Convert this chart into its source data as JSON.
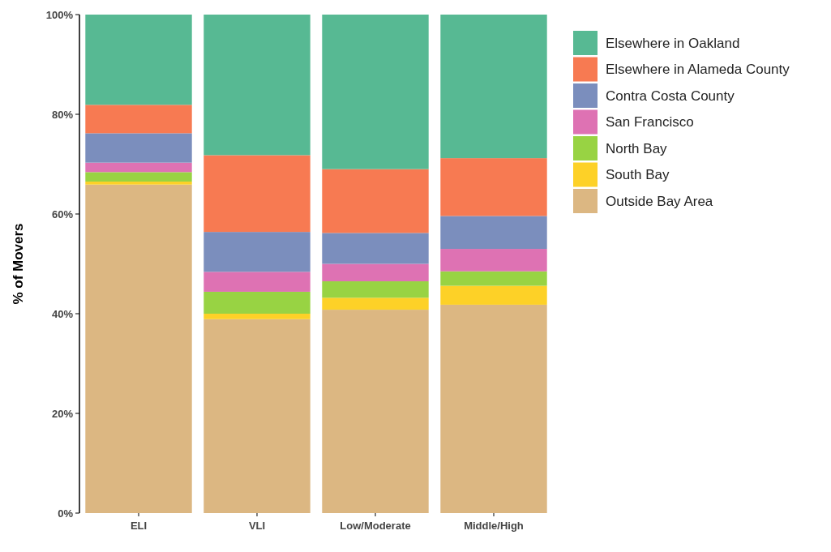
{
  "chart_data": {
    "type": "bar",
    "stacked": true,
    "ylabel": "% of Movers",
    "categories": [
      "ELI",
      "VLI",
      "Low/Moderate",
      "Middle/High"
    ],
    "series": [
      {
        "name": "Outside Bay Area",
        "color": "#dcb782",
        "values": [
          65.9,
          38.9,
          40.8,
          41.8
        ]
      },
      {
        "name": "South Bay",
        "color": "#fdd127",
        "values": [
          0.6,
          1.1,
          2.4,
          3.8
        ]
      },
      {
        "name": "North Bay",
        "color": "#98d343",
        "values": [
          1.9,
          4.4,
          3.3,
          2.9
        ]
      },
      {
        "name": "San Francisco",
        "color": "#de72b3",
        "values": [
          1.9,
          4.0,
          3.5,
          4.5
        ]
      },
      {
        "name": "Contra Costa County",
        "color": "#7b8ebd",
        "values": [
          5.9,
          8.0,
          6.2,
          6.6
        ]
      },
      {
        "name": "Elsewhere in Alameda County",
        "color": "#f77a52",
        "values": [
          5.7,
          15.4,
          12.8,
          11.6
        ]
      },
      {
        "name": "Elsewhere in Oakland",
        "color": "#57b993",
        "values": [
          18.1,
          28.2,
          31.0,
          28.8
        ]
      }
    ],
    "ylim": [
      0,
      100
    ],
    "yticks": [
      {
        "value": 0,
        "label": "0%"
      },
      {
        "value": 20,
        "label": "20%"
      },
      {
        "value": 40,
        "label": "40%"
      },
      {
        "value": 60,
        "label": "60%"
      },
      {
        "value": 80,
        "label": "80%"
      },
      {
        "value": 100,
        "label": "100%"
      }
    ],
    "grid": false,
    "legend": "right"
  }
}
